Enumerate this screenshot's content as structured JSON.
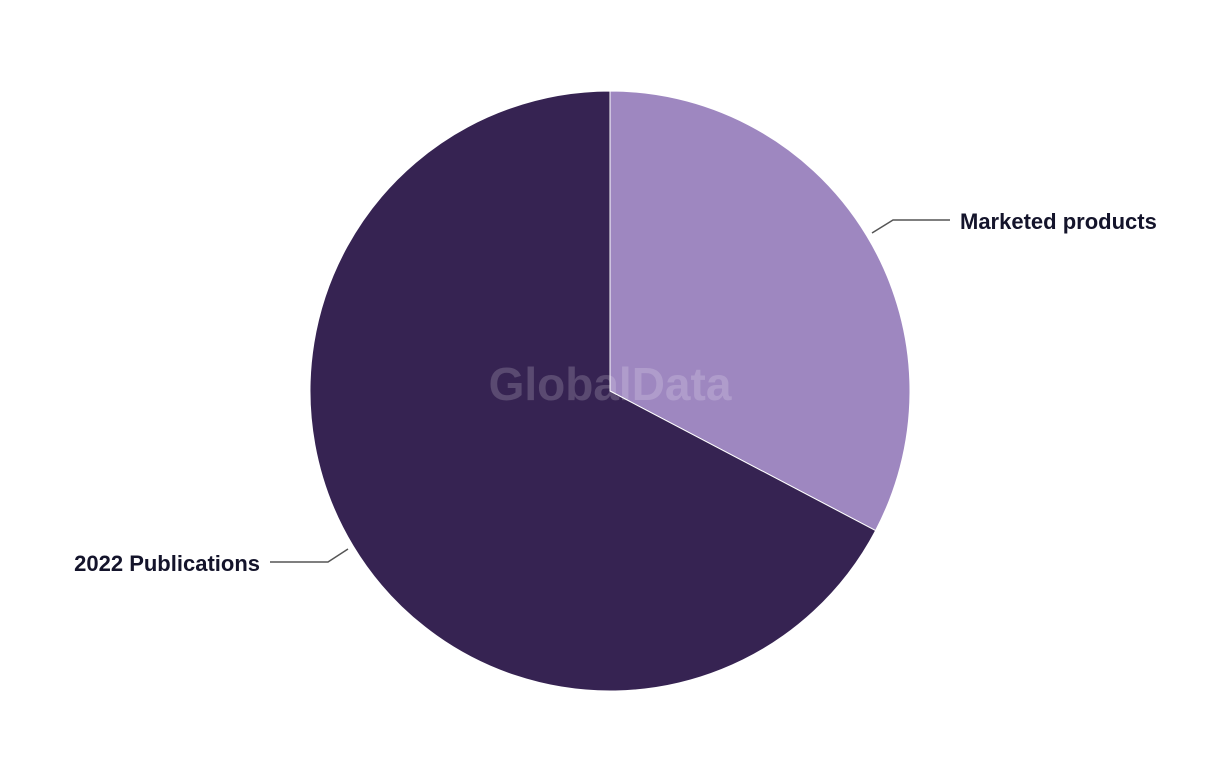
{
  "chart_data": {
    "type": "pie",
    "title": "",
    "slices": [
      {
        "label": "Marketed products",
        "value": 32.7,
        "color": "#9e87c0"
      },
      {
        "label": "2022 Publications",
        "value": 67.3,
        "color": "#362352"
      }
    ],
    "start_angle": "top, clockwise",
    "legend": "none (leader-line labels)"
  },
  "watermark": "GlobalData"
}
